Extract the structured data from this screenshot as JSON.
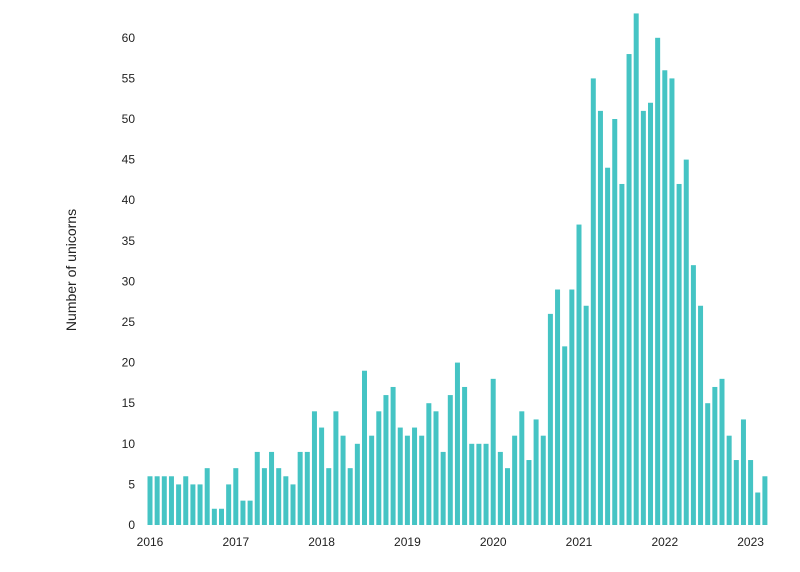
{
  "chart_data": {
    "type": "bar",
    "ylabel": "Number of unicorns",
    "xlabel": "",
    "color": "#45c4c4",
    "ylim": [
      0,
      63
    ],
    "grid": false,
    "x_start": "2016-01",
    "x_frequency": "monthly",
    "y_ticks": [
      0,
      5,
      10,
      15,
      20,
      25,
      30,
      35,
      40,
      45,
      50,
      55,
      60
    ],
    "x_ticks": [
      {
        "label": "2016",
        "month": "2016-01"
      },
      {
        "label": "2017",
        "month": "2017-01"
      },
      {
        "label": "2018",
        "month": "2018-01"
      },
      {
        "label": "2019",
        "month": "2019-01"
      },
      {
        "label": "2020",
        "month": "2020-01"
      },
      {
        "label": "2021",
        "month": "2021-01"
      },
      {
        "label": "2022",
        "month": "2022-01"
      },
      {
        "label": "2023",
        "month": "2023-01"
      }
    ],
    "values": [
      6,
      6,
      6,
      6,
      5,
      6,
      5,
      5,
      7,
      2,
      2,
      5,
      7,
      3,
      3,
      9,
      7,
      9,
      7,
      6,
      5,
      9,
      9,
      14,
      12,
      7,
      14,
      11,
      7,
      10,
      19,
      11,
      14,
      16,
      17,
      12,
      11,
      12,
      11,
      15,
      14,
      9,
      16,
      20,
      17,
      10,
      10,
      10,
      18,
      9,
      7,
      11,
      14,
      8,
      13,
      11,
      26,
      29,
      22,
      29,
      37,
      27,
      55,
      51,
      44,
      50,
      42,
      58,
      63,
      51,
      52,
      60,
      56,
      55,
      42,
      45,
      32,
      27,
      15,
      17,
      18,
      11,
      8,
      13,
      8,
      4,
      6
    ]
  }
}
